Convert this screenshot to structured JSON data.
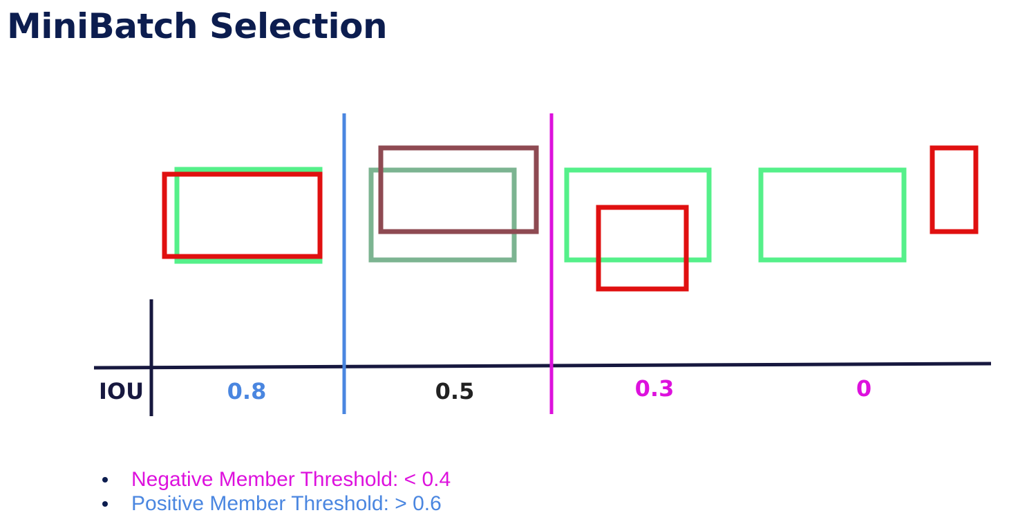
{
  "title": "MiniBatch Selection",
  "axis": {
    "label": "IOU",
    "ticks": [
      {
        "label": "0.8",
        "color": "#4a86e0"
      },
      {
        "label": "0.5",
        "color": "#222222"
      },
      {
        "label": "0.3",
        "color": "#dd11dd"
      },
      {
        "label": "0",
        "color": "#dd11dd"
      }
    ]
  },
  "thresholds": [
    {
      "name": "positive",
      "color": "#4a86e0"
    },
    {
      "name": "negative",
      "color": "#dd11dd"
    }
  ],
  "box_colors": {
    "ground_truth": "#55f08a",
    "ground_truth_faded": "#7cb491",
    "proposal": "#e01010",
    "proposal_faded": "#8e4a52"
  },
  "bullets": [
    {
      "text": "Negative Member Threshold: < 0.4",
      "color": "#dd11dd"
    },
    {
      "text": "Positive Member Threshold:  > 0.6",
      "color": "#4a86e0"
    }
  ]
}
